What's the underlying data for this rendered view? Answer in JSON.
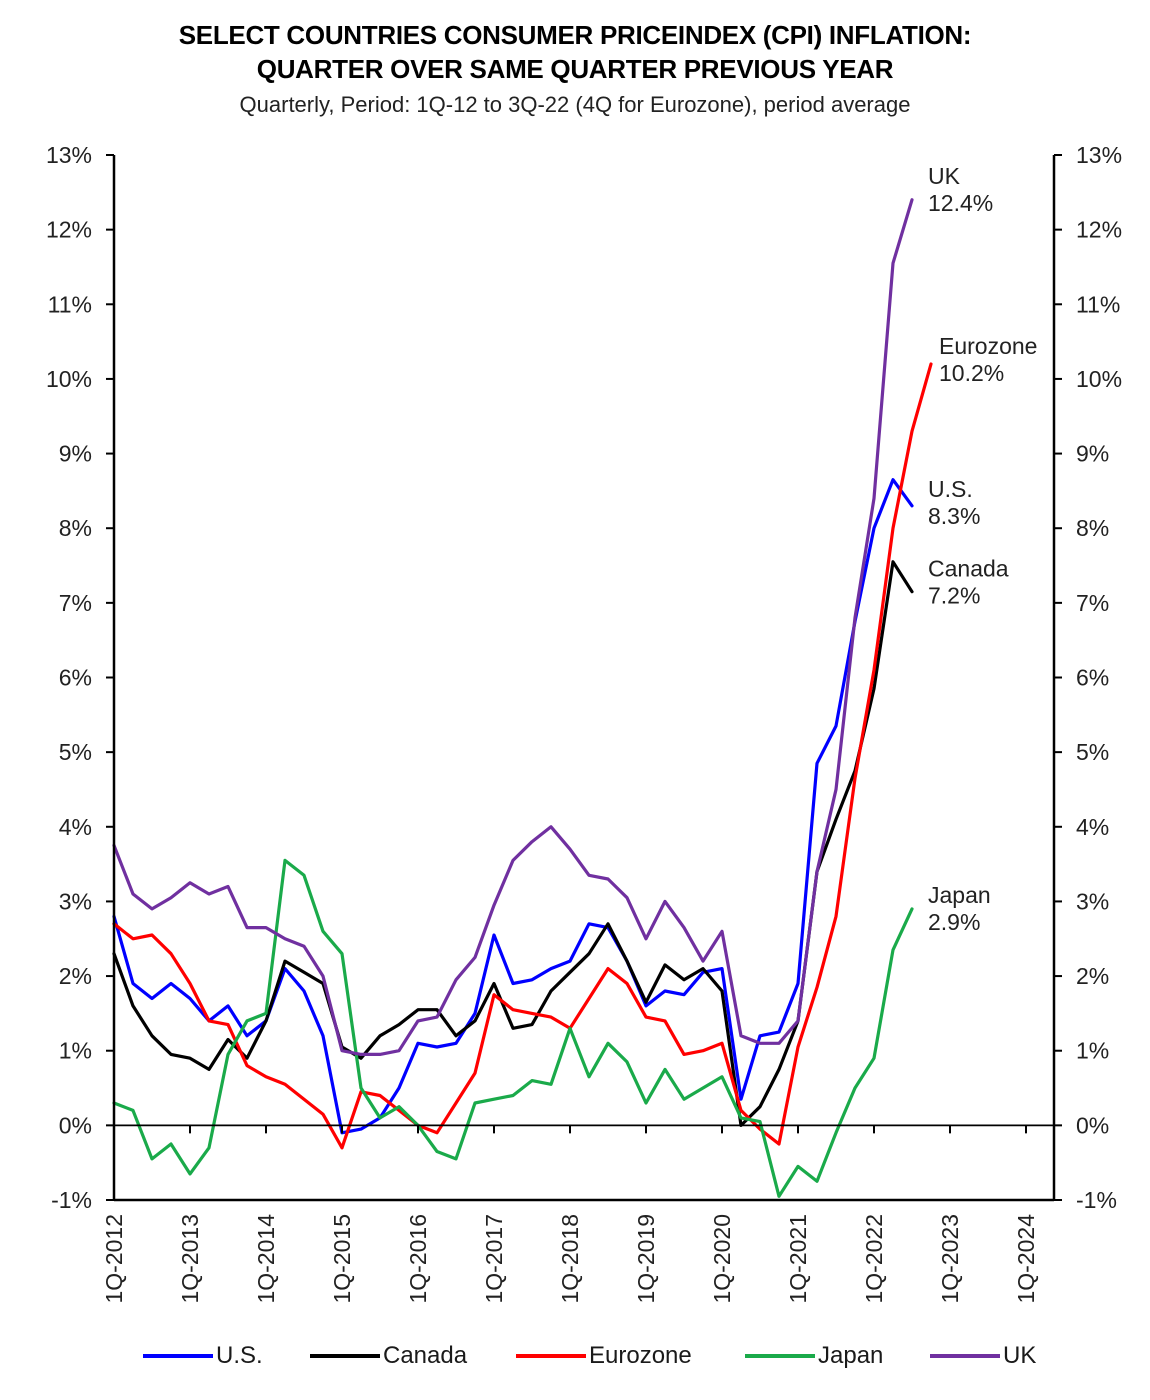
{
  "chart_data": {
    "type": "line",
    "title": "SELECT COUNTRIES CONSUMER PRICEINDEX (CPI) INFLATION:",
    "title_line2": "QUARTER OVER SAME QUARTER PREVIOUS YEAR",
    "subtitle": "Quarterly, Period: 1Q-12 to 3Q-22 (4Q for Eurozone), period average",
    "xlabel": "",
    "ylabel": "",
    "ylim": [
      -1,
      13
    ],
    "yticks": [
      -1,
      0,
      1,
      2,
      3,
      4,
      5,
      6,
      7,
      8,
      9,
      10,
      11,
      12,
      13
    ],
    "ytick_labels": [
      "-1%",
      "0%",
      "1%",
      "2%",
      "3%",
      "4%",
      "5%",
      "6%",
      "7%",
      "8%",
      "9%",
      "10%",
      "11%",
      "12%",
      "13%"
    ],
    "x_start": "1Q-2012",
    "x_quarters_range": [
      0,
      49.5
    ],
    "xtick_labels": [
      "1Q-2012",
      "1Q-2013",
      "1Q-2014",
      "1Q-2015",
      "1Q-2016",
      "1Q-2017",
      "1Q-2018",
      "1Q-2019",
      "1Q-2020",
      "1Q-2021",
      "1Q-2022",
      "1Q-2023",
      "1Q-2024"
    ],
    "grid": false,
    "legend_position": "bottom",
    "series": [
      {
        "name": "U.S.",
        "color": "#0000ff",
        "end_label": "U.S.",
        "end_value_label": "8.3%",
        "values": [
          2.8,
          1.9,
          1.7,
          1.9,
          1.7,
          1.4,
          1.6,
          1.2,
          1.4,
          2.1,
          1.8,
          1.2,
          -0.1,
          -0.05,
          0.1,
          0.5,
          1.1,
          1.05,
          1.1,
          1.5,
          2.55,
          1.9,
          1.95,
          2.1,
          2.2,
          2.7,
          2.65,
          2.2,
          1.6,
          1.8,
          1.75,
          2.05,
          2.1,
          0.35,
          1.2,
          1.25,
          1.9,
          4.85,
          5.35,
          6.75,
          8.0,
          8.65,
          8.3
        ]
      },
      {
        "name": "Canada",
        "color": "#000000",
        "end_label": "Canada",
        "end_value_label": "7.2%",
        "values": [
          2.3,
          1.6,
          1.2,
          0.95,
          0.9,
          0.75,
          1.15,
          0.9,
          1.4,
          2.2,
          2.05,
          1.9,
          1.05,
          0.9,
          1.2,
          1.35,
          1.55,
          1.55,
          1.2,
          1.4,
          1.9,
          1.3,
          1.35,
          1.8,
          2.05,
          2.3,
          2.7,
          2.2,
          1.65,
          2.15,
          1.95,
          2.1,
          1.8,
          0.0,
          0.25,
          0.75,
          1.4,
          3.4,
          4.1,
          4.75,
          5.85,
          7.55,
          7.15
        ]
      },
      {
        "name": "Eurozone",
        "color": "#ff0000",
        "end_label": "Eurozone",
        "end_value_label": "10.2%",
        "values": [
          2.7,
          2.5,
          2.55,
          2.3,
          1.9,
          1.4,
          1.35,
          0.8,
          0.65,
          0.55,
          0.35,
          0.15,
          -0.3,
          0.45,
          0.4,
          0.2,
          0.0,
          -0.1,
          0.3,
          0.7,
          1.75,
          1.55,
          1.5,
          1.45,
          1.3,
          1.7,
          2.1,
          1.9,
          1.45,
          1.4,
          0.95,
          1.0,
          1.1,
          0.2,
          -0.05,
          -0.25,
          1.05,
          1.85,
          2.8,
          4.65,
          6.1,
          8.0,
          9.3,
          10.2
        ]
      },
      {
        "name": "Japan",
        "color": "#1aaa4a",
        "end_label": "Japan",
        "end_value_label": "2.9%",
        "values": [
          0.3,
          0.2,
          -0.45,
          -0.25,
          -0.65,
          -0.3,
          0.95,
          1.4,
          1.5,
          3.55,
          3.35,
          2.6,
          2.3,
          0.5,
          0.1,
          0.25,
          0.0,
          -0.35,
          -0.45,
          0.3,
          0.35,
          0.4,
          0.6,
          0.55,
          1.3,
          0.65,
          1.1,
          0.85,
          0.3,
          0.75,
          0.35,
          0.5,
          0.65,
          0.1,
          0.05,
          -0.95,
          -0.55,
          -0.75,
          -0.1,
          0.5,
          0.9,
          2.35,
          2.9
        ]
      },
      {
        "name": "UK",
        "color": "#7030a0",
        "end_label": "UK",
        "end_value_label": "12.4%",
        "values": [
          3.75,
          3.1,
          2.9,
          3.05,
          3.25,
          3.1,
          3.2,
          2.65,
          2.65,
          2.5,
          2.4,
          2.0,
          1.0,
          0.95,
          0.95,
          1.0,
          1.4,
          1.45,
          1.95,
          2.25,
          2.95,
          3.55,
          3.8,
          4.0,
          3.7,
          3.35,
          3.3,
          3.05,
          2.5,
          3.0,
          2.65,
          2.2,
          2.6,
          1.2,
          1.1,
          1.1,
          1.4,
          3.4,
          4.5,
          6.8,
          8.4,
          11.55,
          12.4
        ]
      }
    ]
  }
}
